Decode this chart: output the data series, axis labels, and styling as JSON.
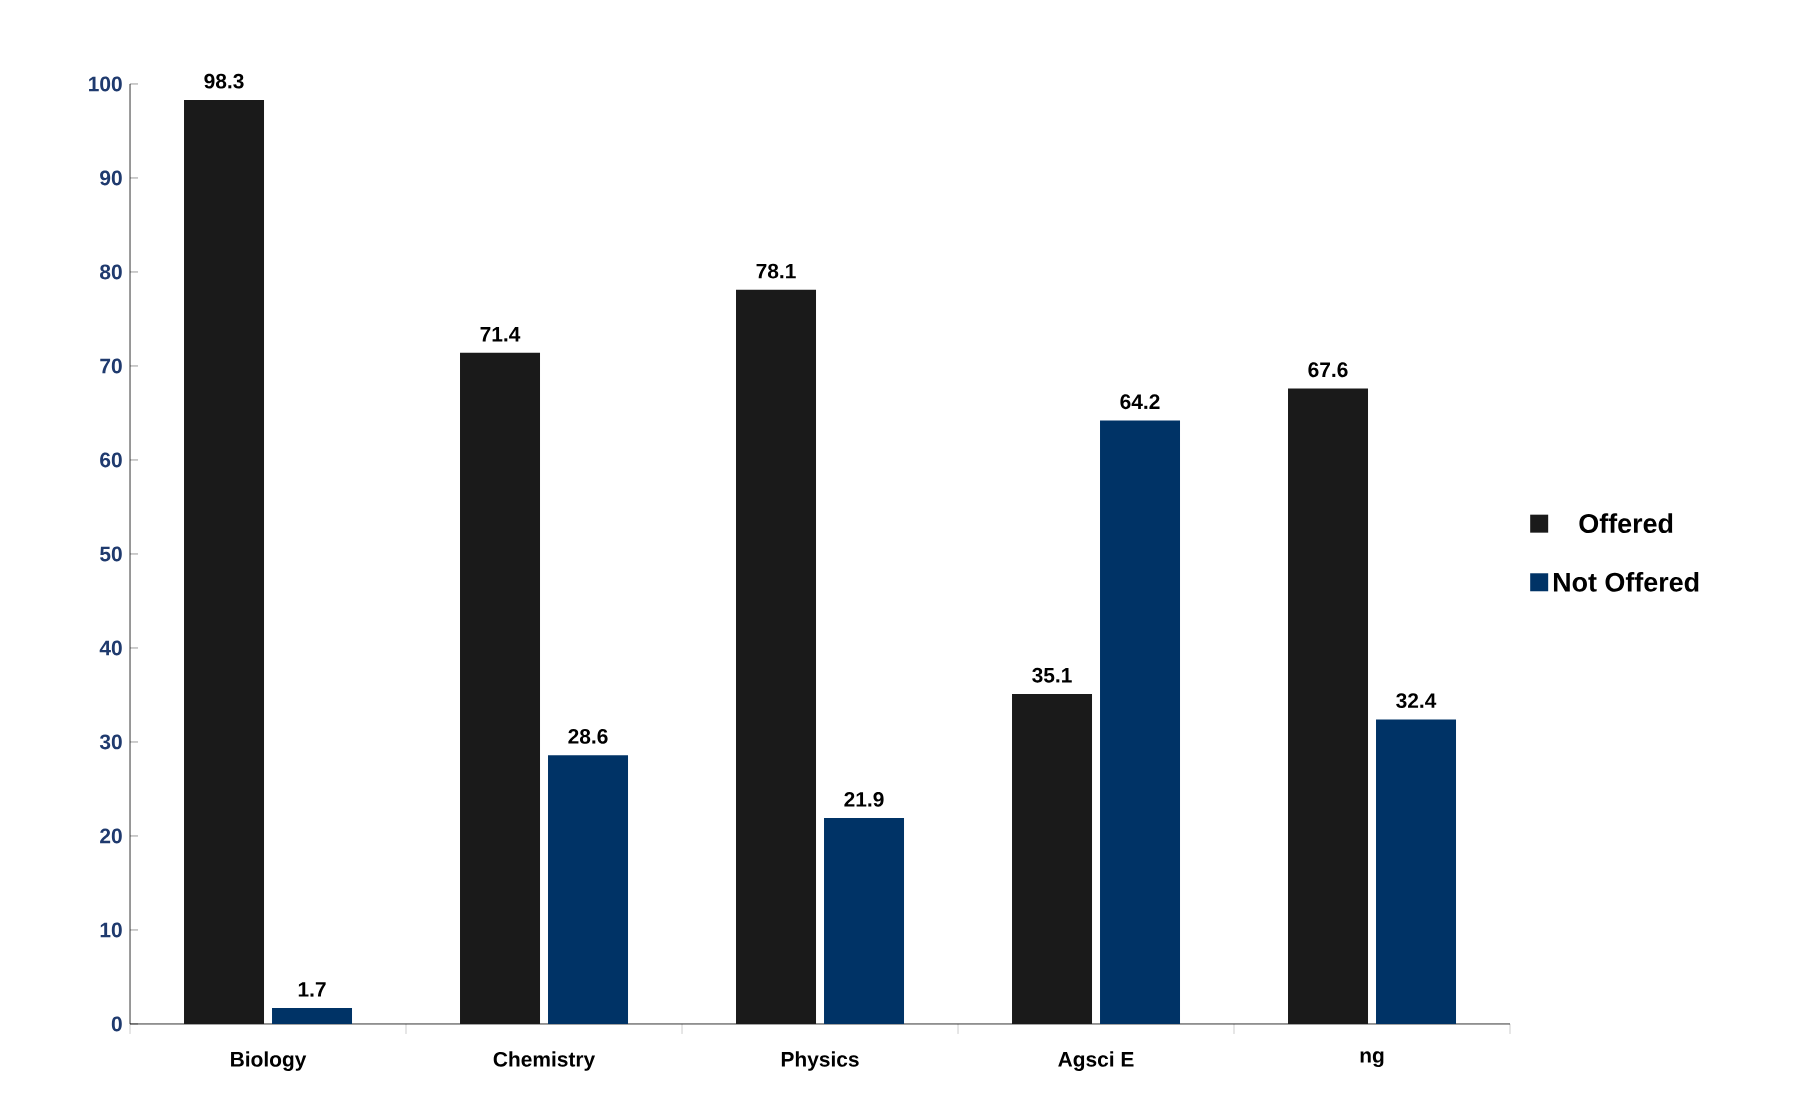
{
  "chart_data": {
    "type": "bar",
    "categories": [
      "Biology",
      "Chemistry",
      "Physics",
      "Agsci E",
      "ng"
    ],
    "series": [
      {
        "name": "Offered",
        "color": "#1a1a1a",
        "values": [
          98.3,
          71.4,
          78.1,
          35.1,
          67.6
        ]
      },
      {
        "name": "Not Offered",
        "color": "#003366",
        "values": [
          1.7,
          28.6,
          21.9,
          64.2,
          32.4
        ]
      }
    ],
    "ylim": [
      0,
      100
    ],
    "yticks": [
      0,
      10,
      20,
      30,
      40,
      50,
      60,
      70,
      80,
      90,
      100
    ],
    "grid": false,
    "legend": "right",
    "data_labels": true
  }
}
